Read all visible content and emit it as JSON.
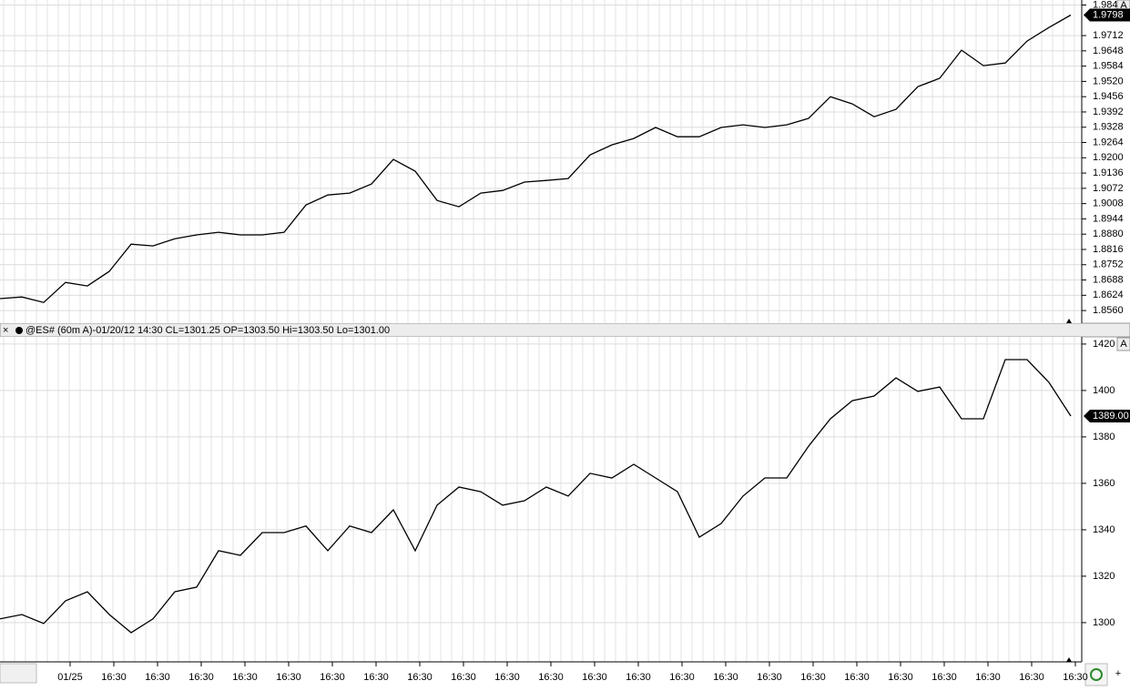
{
  "chart_data": [
    {
      "type": "line",
      "color": "#000000",
      "grid": true,
      "ylim": [
        1.8507,
        1.9861
      ],
      "yticks": [
        {
          "value": 1.856,
          "label": "1.8560"
        },
        1.8624,
        1.8688,
        1.8752,
        1.8816,
        {
          "value": 1.888,
          "label": "1.8880"
        },
        1.8944,
        1.9008,
        1.9072,
        1.9136,
        {
          "value": 1.92,
          "label": "1.9200"
        },
        1.9264,
        1.9328,
        1.9392,
        1.9456,
        {
          "value": 1.952,
          "label": "1.9520"
        },
        1.9584,
        1.9648,
        1.9712,
        1.984
      ],
      "values": [
        1.861,
        1.8617,
        1.8594,
        1.8678,
        1.8663,
        1.8724,
        1.8838,
        1.8831,
        1.8861,
        1.8877,
        1.8888,
        1.8877,
        1.8877,
        1.8888,
        1.9002,
        1.9044,
        1.9052,
        1.909,
        1.9193,
        1.9144,
        1.9021,
        1.8995,
        1.9052,
        1.9063,
        1.9098,
        1.9105,
        1.9113,
        1.9212,
        1.9254,
        1.9281,
        1.9327,
        1.9288,
        1.9288,
        1.9327,
        1.9338,
        1.9327,
        1.9338,
        1.9365,
        1.9456,
        1.9426,
        1.9372,
        1.9403,
        1.9498,
        1.9533,
        1.9651,
        1.9586,
        1.9597,
        1.9689,
        1.9746,
        1.9798
      ],
      "last_value": 1.9798
    },
    {
      "type": "line",
      "color": "#000000",
      "grid": true,
      "ylim": [
        1283.1,
        1423.1
      ],
      "yticks": [
        1300,
        1320,
        1340,
        1360,
        1380,
        1400,
        1420
      ],
      "values": [
        1301.6,
        1303.5,
        1299.6,
        1309.4,
        1313.3,
        1303.5,
        1295.7,
        1301.6,
        1313.3,
        1315.3,
        1331.0,
        1329.0,
        1338.8,
        1338.8,
        1341.6,
        1331.0,
        1341.6,
        1338.8,
        1348.6,
        1331.0,
        1350.6,
        1358.4,
        1356.4,
        1350.6,
        1352.5,
        1358.4,
        1354.5,
        1364.3,
        1362.3,
        1368.2,
        1362.3,
        1356.4,
        1336.8,
        1342.7,
        1354.5,
        1362.3,
        1362.3,
        1376.0,
        1387.8,
        1395.6,
        1397.6,
        1405.4,
        1399.6,
        1401.5,
        1387.8,
        1387.8,
        1413.3,
        1413.3,
        1403.5,
        1389
      ],
      "last_value": {
        "value": 1389,
        "label": "1389.00"
      }
    }
  ],
  "header": "@ES# (60m A)-01/20/12 14:30 CL=1301.25 OP=1303.50 Hi=1303.50 Lo=1301.00",
  "x_labels": [
    "01/25",
    "16:30",
    "16:30",
    "16:30",
    "16:30",
    "16:30",
    "16:30",
    "16:30",
    "16:30",
    "16:30",
    "16:30",
    "16:30",
    "16:30",
    "16:30",
    "16:30",
    "16:30",
    "16:30",
    "16:30",
    "16:30",
    "16:30",
    "16:30",
    "16:30",
    "16:30",
    "16:30"
  ],
  "ui": {
    "scale_button": "A",
    "close": "×",
    "add": "+"
  }
}
